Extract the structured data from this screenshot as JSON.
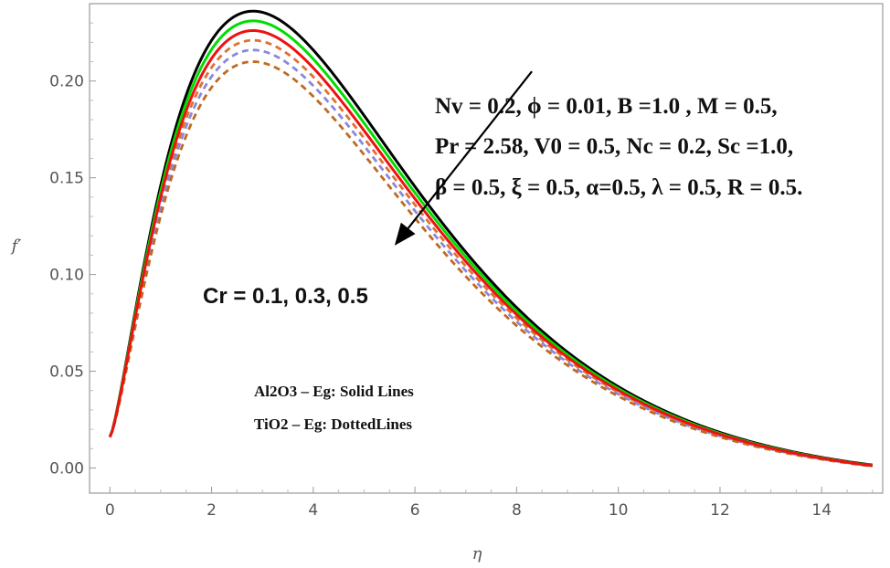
{
  "chart_data": {
    "type": "line",
    "title": "",
    "xlabel": "η",
    "ylabel": "f′",
    "xlim": [
      -0.4,
      15.2
    ],
    "ylim": [
      -0.013,
      0.24
    ],
    "grid": false,
    "x_ticks": [
      "0",
      "2",
      "4",
      "6",
      "8",
      "10",
      "12",
      "14"
    ],
    "y_ticks": [
      "0.00",
      "0.05",
      "0.10",
      "0.15",
      "0.20"
    ],
    "series": [
      {
        "name": "Al2O3 – Eg, Cr = 0.1",
        "style": "solid",
        "color": "#000000",
        "peak_x": 2.85,
        "peak_y": 0.236,
        "start_y": 0.016,
        "end_y": 0.0015
      },
      {
        "name": "Al2O3 – Eg, Cr = 0.3",
        "style": "solid",
        "color": "#00dd00",
        "peak_x": 2.85,
        "peak_y": 0.231,
        "start_y": 0.016,
        "end_y": 0.0013
      },
      {
        "name": "Al2O3 – Eg, Cr = 0.5",
        "style": "solid",
        "color": "#ee1111",
        "peak_x": 2.85,
        "peak_y": 0.226,
        "start_y": 0.016,
        "end_y": 0.0012
      },
      {
        "name": "TiO2 – Eg, Cr = 0.1",
        "style": "dashed",
        "color": "#e07030",
        "peak_x": 2.85,
        "peak_y": 0.221,
        "start_y": 0.016,
        "end_y": 0.0011
      },
      {
        "name": "TiO2 – Eg, Cr = 0.3",
        "style": "dashed",
        "color": "#8888dd",
        "peak_x": 2.85,
        "peak_y": 0.216,
        "start_y": 0.016,
        "end_y": 0.001
      },
      {
        "name": "TiO2 – Eg, Cr = 0.5",
        "style": "dashed",
        "color": "#c06a20",
        "peak_x": 2.85,
        "peak_y": 0.21,
        "start_y": 0.016,
        "end_y": 0.0009
      }
    ],
    "annotations": {
      "params_line1": "Nv = 0.2, ϕ = 0.01, B =1.0 , M = 0.5,",
      "params_line2": "Pr = 2.58, V0 = 0.5, Nc = 0.2, Sc =1.0,",
      "params_line3": "β = 0.5, ξ = 0.5,  α=0.5, λ = 0.5, R = 0.5.",
      "cr_label": "Cr =  0.1, 0.3, 0.5",
      "legend_line1": "Al2O3 – Eg: Solid Lines",
      "legend_line2": "TiO2 – Eg: DottedLines",
      "arrow_from": [
        8.3,
        0.205
      ],
      "arrow_to": [
        5.6,
        0.115
      ]
    }
  }
}
